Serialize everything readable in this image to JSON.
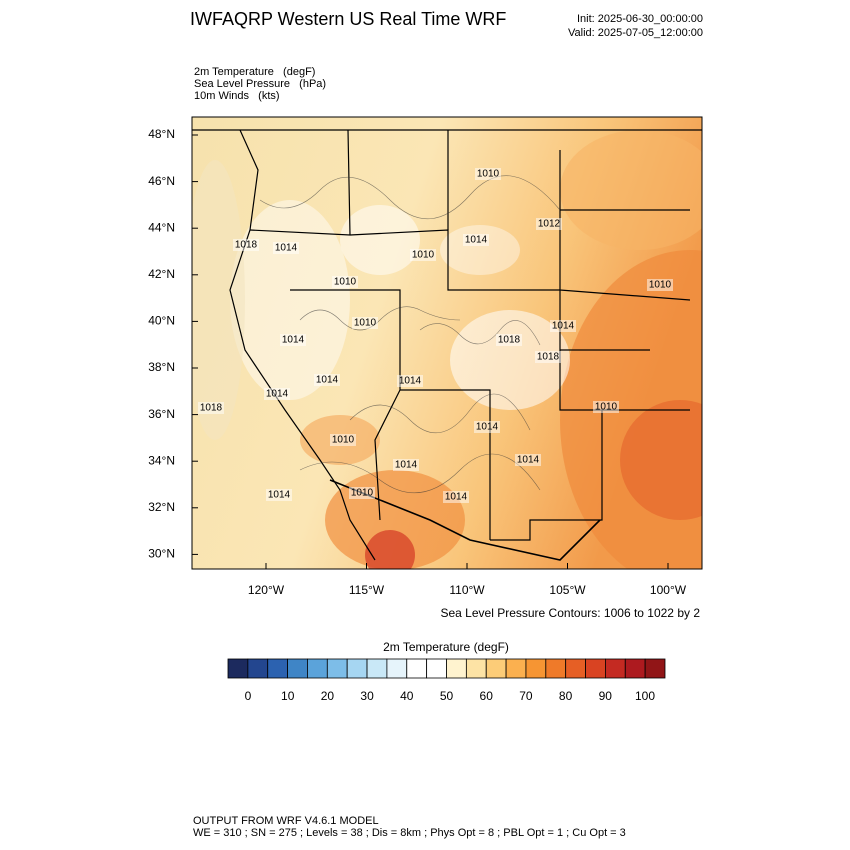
{
  "header": {
    "title": "IWFAQRP Western US Real Time WRF",
    "init": "Init: 2025-06-30_00:00:00",
    "valid": "Valid: 2025-07-05_12:00:00"
  },
  "fields": [
    "2m Temperature   (degF)",
    "Sea Level Pressure   (hPa)",
    "10m Winds   (kts)"
  ],
  "map": {
    "lat_labels": [
      "48°N",
      "46°N",
      "44°N",
      "42°N",
      "40°N",
      "38°N",
      "36°N",
      "34°N",
      "32°N",
      "30°N"
    ],
    "lon_labels": [
      "120°W",
      "115°W",
      "110°W",
      "105°W",
      "100°W"
    ],
    "contour_labels": [
      "1010",
      "1012",
      "1014",
      "1018",
      "1014",
      "1010",
      "1010",
      "1010",
      "1010",
      "1014",
      "1014",
      "1018",
      "1018",
      "1014",
      "1014",
      "1014",
      "1018",
      "1010",
      "1014",
      "1010",
      "1014",
      "1014",
      "1014",
      "1010",
      "1014"
    ],
    "contour_note": "Sea Level Pressure Contours: 1006 to 1022 by 2"
  },
  "colorbar": {
    "title": "2m Temperature  (degF)",
    "labels": [
      "0",
      "10",
      "20",
      "30",
      "40",
      "50",
      "60",
      "70",
      "80",
      "90",
      "100"
    ],
    "colors": [
      "#1c2a5e",
      "#23468f",
      "#2c62b0",
      "#3f85c6",
      "#5ba3da",
      "#7dbde8",
      "#a6d6f2",
      "#c9e8f7",
      "#e6f4fb",
      "#ffffff",
      "#ffffff",
      "#fff3cf",
      "#fde3a5",
      "#fccc78",
      "#fbb04f",
      "#f69533",
      "#ef7a29",
      "#e65f25",
      "#d94322",
      "#c42a22",
      "#ad1a1f",
      "#911517"
    ]
  },
  "footer": [
    "OUTPUT FROM WRF V4.6.1 MODEL",
    "WE = 310 ; SN = 275 ; Levels = 38 ; Dis = 8km ; Phys Opt = 8 ; PBL Opt = 1 ; Cu Opt = 3"
  ]
}
